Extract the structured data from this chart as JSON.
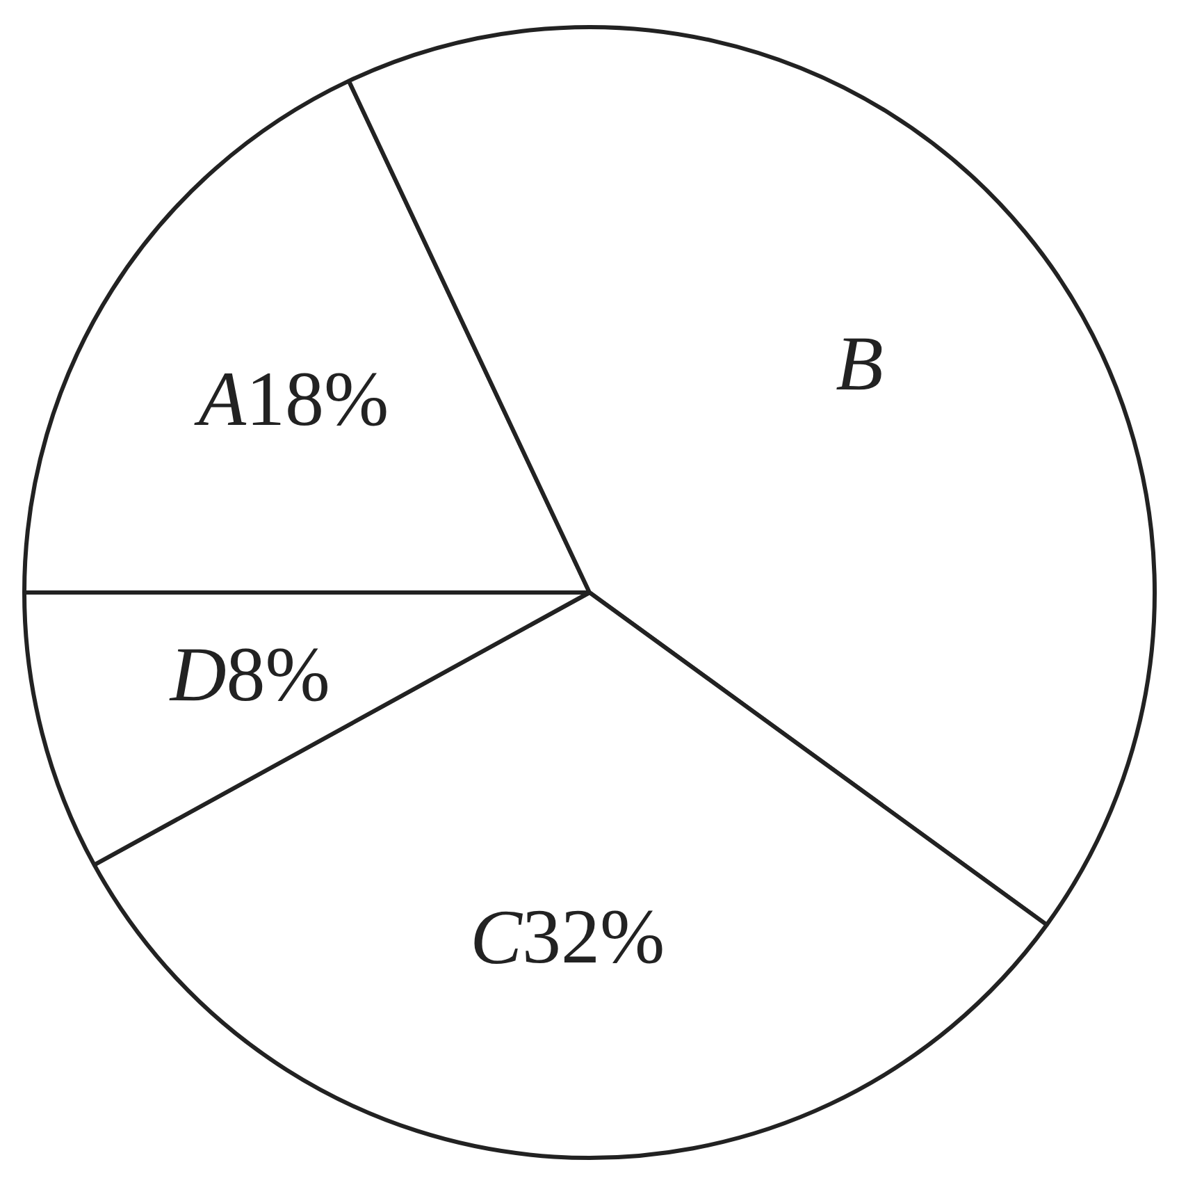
{
  "chart_data": {
    "type": "pie",
    "categories": [
      "A",
      "B",
      "C",
      "D"
    ],
    "values": [
      18,
      42,
      32,
      8
    ],
    "value_labels": [
      "18%",
      null,
      "32%",
      "8%"
    ],
    "colors": [
      "#ffffff",
      "#ffffff",
      "#ffffff",
      "#ffffff"
    ],
    "legend": false
  }
}
